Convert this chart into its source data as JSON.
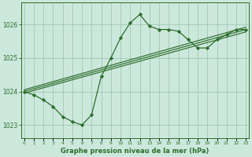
{
  "hours": [
    0,
    1,
    2,
    3,
    4,
    5,
    6,
    7,
    8,
    9,
    10,
    11,
    12,
    13,
    14,
    15,
    16,
    17,
    18,
    19,
    20,
    21,
    22,
    23
  ],
  "pressure": [
    1024.0,
    1023.9,
    1023.75,
    1023.55,
    1023.25,
    1023.1,
    1023.0,
    1023.3,
    1024.45,
    1025.0,
    1025.6,
    1026.05,
    1026.3,
    1025.95,
    1025.85,
    1025.85,
    1025.8,
    1025.55,
    1025.3,
    1025.3,
    1025.55,
    1025.7,
    1025.85,
    1025.85
  ],
  "line_color": "#2d6e2d",
  "marker_color": "#2d6e2d",
  "bg_color": "#cce8dc",
  "grid_color": "#a0c8b4",
  "title": "Graphe pression niveau de la mer (hPa)",
  "ylim": [
    1022.6,
    1026.65
  ],
  "xlim": [
    -0.3,
    23.3
  ],
  "trend_lines": [
    {
      "x0": 0,
      "x1": 23,
      "y0": 1023.95,
      "y1": 1025.78
    },
    {
      "x0": 0,
      "x1": 23,
      "y0": 1024.0,
      "y1": 1025.85
    },
    {
      "x0": 0,
      "x1": 23,
      "y0": 1024.05,
      "y1": 1025.92
    }
  ],
  "yticks": [
    1023,
    1024,
    1025,
    1026
  ],
  "xtick_labels": [
    "0",
    "1",
    "2",
    "3",
    "4",
    "5",
    "6",
    "7",
    "8",
    "9",
    "10",
    "11",
    "12",
    "13",
    "14",
    "15",
    "16",
    "17",
    "18",
    "19",
    "20",
    "21",
    "22",
    "23"
  ]
}
